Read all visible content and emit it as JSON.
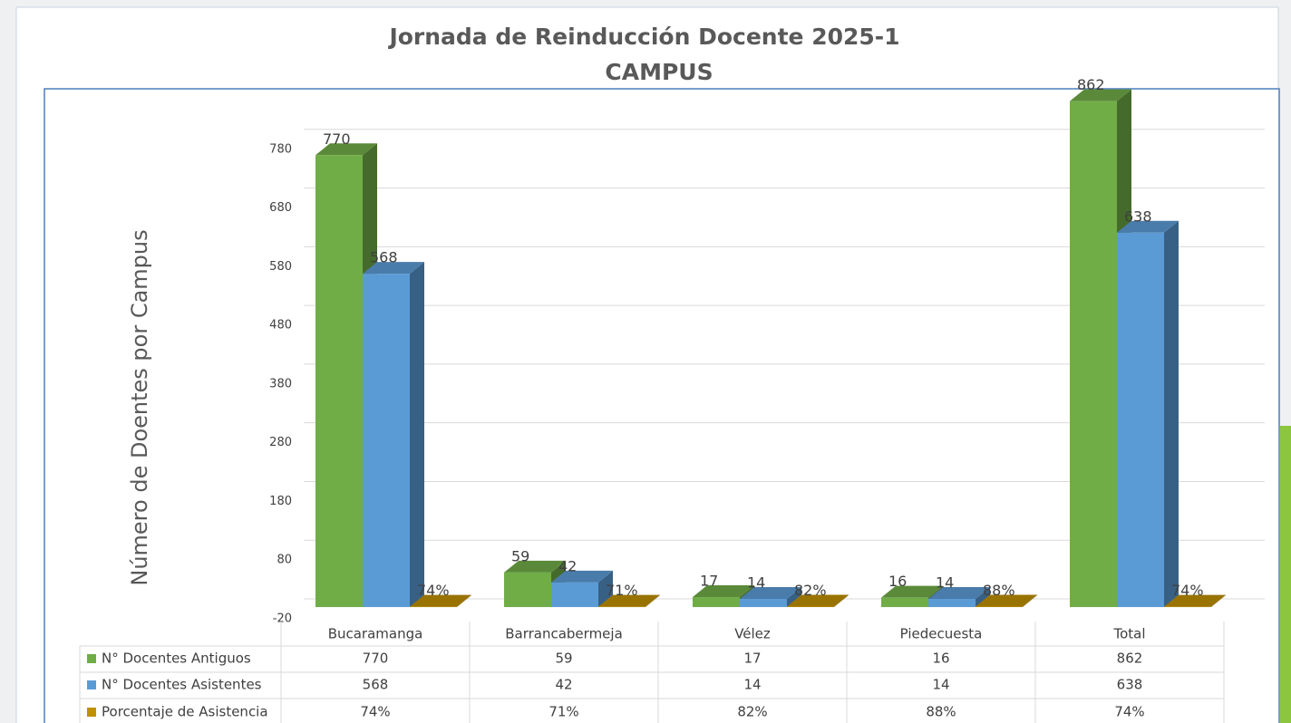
{
  "chart_data": {
    "type": "bar3d",
    "title": "Jornada de Reinducción Docente 2025-1",
    "subtitle": "CAMPUS",
    "ylabel": "Número de Doentes por Campus",
    "categories": [
      "Bucaramanga",
      "Barrancabermeja",
      "Vélez",
      "Piedecuesta",
      "Total"
    ],
    "series": [
      {
        "name": "N° Docentes Antiguos",
        "color": "#70ad47",
        "values": [
          770,
          59,
          17,
          16,
          862
        ]
      },
      {
        "name": "N° Docentes Asistentes",
        "color": "#5b9bd5",
        "values": [
          568,
          42,
          14,
          14,
          638
        ]
      },
      {
        "name": "Porcentaje de Asistencia",
        "color": "#bf9000",
        "values": [
          0.74,
          0.71,
          0.82,
          0.88,
          0.74
        ],
        "value_labels": [
          "74%",
          "71%",
          "82%",
          "88%",
          "74%"
        ]
      }
    ],
    "ylim": [
      -20,
      880
    ],
    "yticks": [
      -20,
      80,
      180,
      280,
      380,
      480,
      580,
      680,
      780
    ],
    "grid": true,
    "data_table": true
  }
}
